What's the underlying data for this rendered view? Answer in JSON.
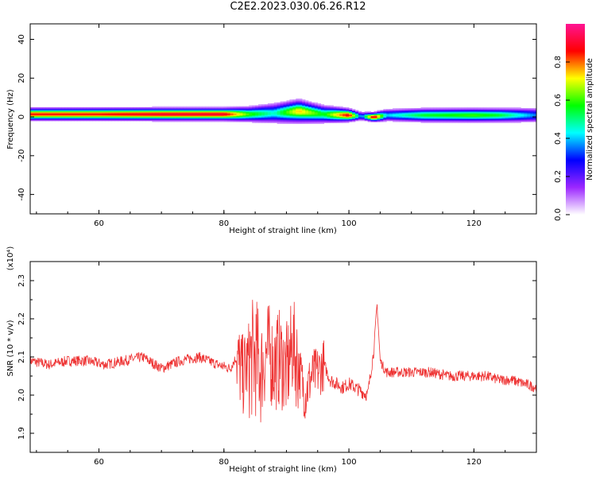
{
  "figure": {
    "title": "C2E2.2023.030.06.26.R12"
  },
  "chart_data": [
    {
      "type": "heatmap",
      "xlabel": "Height of straight line (km)",
      "ylabel": "Frequency (Hz)",
      "xlim": [
        49,
        130
      ],
      "ylim": [
        -50,
        48
      ],
      "x_ticks": [
        60,
        80,
        100,
        120
      ],
      "y_ticks": [
        -40,
        -20,
        0,
        20,
        40
      ],
      "colorbar": {
        "label": "Normalized spectral amplitude",
        "range": [
          0,
          1
        ],
        "ticks": [
          0.0,
          0.2,
          0.4,
          0.6,
          0.8
        ],
        "colormap": [
          "#ffffff",
          "#9c27ff",
          "#0000ff",
          "#00ffff",
          "#00ff00",
          "#ffff00",
          "#ff0000",
          "#ff1493"
        ]
      },
      "band": [
        {
          "x": 49,
          "center": 1.5,
          "width": 2.5,
          "peak": 0.85
        },
        {
          "x": 60,
          "center": 1.5,
          "width": 2.5,
          "peak": 0.85
        },
        {
          "x": 70,
          "center": 1.5,
          "width": 2.5,
          "peak": 0.9
        },
        {
          "x": 80,
          "center": 1.5,
          "width": 2.5,
          "peak": 0.9
        },
        {
          "x": 84,
          "center": 1.5,
          "width": 3.0,
          "peak": 0.6
        },
        {
          "x": 88,
          "center": 2.0,
          "width": 4.0,
          "peak": 0.45
        },
        {
          "x": 92,
          "center": 3.0,
          "width": 4.5,
          "peak": 0.75
        },
        {
          "x": 96,
          "center": 1.5,
          "width": 3.5,
          "peak": 0.55
        },
        {
          "x": 100,
          "center": 1.0,
          "width": 2.5,
          "peak": 0.9
        },
        {
          "x": 102,
          "center": 0.5,
          "width": 1.8,
          "peak": 0.3
        },
        {
          "x": 104,
          "center": 0.0,
          "width": 1.8,
          "peak": 0.95
        },
        {
          "x": 106,
          "center": 1.0,
          "width": 2.5,
          "peak": 0.4
        },
        {
          "x": 112,
          "center": 1.0,
          "width": 2.8,
          "peak": 0.55
        },
        {
          "x": 120,
          "center": 1.0,
          "width": 2.8,
          "peak": 0.6
        },
        {
          "x": 124,
          "center": 1.0,
          "width": 2.8,
          "peak": 0.55
        },
        {
          "x": 130,
          "center": 1.0,
          "width": 3.0,
          "peak": 0.35
        }
      ]
    },
    {
      "type": "line",
      "xlabel": "Height of straight line (km)",
      "ylabel": "SNR (10 * v/v)",
      "y_multiplier": "(x10⁴)",
      "xlim": [
        49,
        130
      ],
      "ylim": [
        1.85,
        2.35
      ],
      "x_ticks": [
        60,
        80,
        100,
        120
      ],
      "y_ticks": [
        1.9,
        2.0,
        2.1,
        2.2,
        2.3
      ],
      "color": "#ee3333",
      "series": [
        {
          "x": [
            49,
            52,
            55,
            58,
            61,
            64,
            67,
            70,
            73,
            76,
            79,
            81,
            82,
            83,
            84,
            85,
            86,
            87,
            88,
            89,
            90,
            91,
            92,
            93,
            94,
            95,
            96,
            97,
            98,
            99,
            100,
            101,
            102,
            103,
            104,
            104.5,
            105,
            106,
            108,
            110,
            113,
            116,
            119,
            122,
            124,
            126,
            128,
            130
          ],
          "y": [
            2.09,
            2.08,
            2.09,
            2.09,
            2.08,
            2.09,
            2.1,
            2.07,
            2.09,
            2.1,
            2.08,
            2.07,
            2.1,
            2.05,
            2.09,
            2.1,
            2.07,
            2.12,
            2.08,
            2.1,
            2.06,
            2.13,
            2.07,
            2.0,
            2.05,
            2.06,
            2.08,
            2.04,
            2.03,
            2.02,
            2.03,
            2.02,
            2.01,
            2.0,
            2.12,
            2.24,
            2.09,
            2.06,
            2.06,
            2.06,
            2.06,
            2.05,
            2.05,
            2.05,
            2.04,
            2.04,
            2.03,
            2.02
          ]
        }
      ]
    }
  ]
}
